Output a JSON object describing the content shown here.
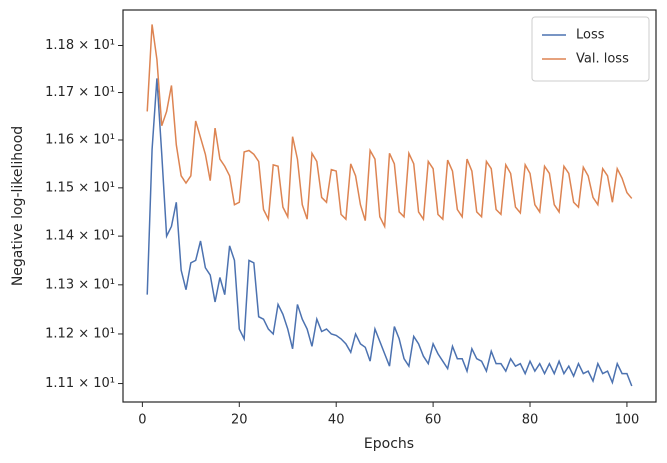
{
  "chart_data": {
    "type": "line",
    "xlabel": "Epochs",
    "ylabel": "Negative log-likelihood",
    "x": [
      1,
      2,
      3,
      4,
      5,
      6,
      7,
      8,
      9,
      10,
      11,
      12,
      13,
      14,
      15,
      16,
      17,
      18,
      19,
      20,
      21,
      22,
      23,
      24,
      25,
      26,
      27,
      28,
      29,
      30,
      31,
      32,
      33,
      34,
      35,
      36,
      37,
      38,
      39,
      40,
      41,
      42,
      43,
      44,
      45,
      46,
      47,
      48,
      49,
      50,
      51,
      52,
      53,
      54,
      55,
      56,
      57,
      58,
      59,
      60,
      61,
      62,
      63,
      64,
      65,
      66,
      67,
      68,
      69,
      70,
      71,
      72,
      73,
      74,
      75,
      76,
      77,
      78,
      79,
      80,
      81,
      82,
      83,
      84,
      85,
      86,
      87,
      88,
      89,
      90,
      91,
      92,
      93,
      94,
      95,
      96,
      97,
      98,
      99,
      100,
      101
    ],
    "series": [
      {
        "name": "Loss",
        "color": "#4c72b0",
        "values": [
          11.28,
          11.58,
          11.73,
          11.57,
          11.4,
          11.42,
          11.47,
          11.33,
          11.29,
          11.345,
          11.35,
          11.39,
          11.335,
          11.32,
          11.265,
          11.315,
          11.28,
          11.38,
          11.35,
          11.21,
          11.19,
          11.35,
          11.345,
          11.235,
          11.23,
          11.21,
          11.2,
          11.26,
          11.24,
          11.21,
          11.17,
          11.26,
          11.23,
          11.21,
          11.175,
          11.23,
          11.205,
          11.21,
          11.2,
          11.197,
          11.19,
          11.18,
          11.163,
          11.2,
          11.18,
          11.173,
          11.145,
          11.21,
          11.185,
          11.16,
          11.135,
          11.215,
          11.19,
          11.15,
          11.135,
          11.195,
          11.18,
          11.155,
          11.14,
          11.18,
          11.16,
          11.145,
          11.13,
          11.175,
          11.15,
          11.15,
          11.125,
          11.17,
          11.15,
          11.145,
          11.125,
          11.165,
          11.14,
          11.14,
          11.125,
          11.15,
          11.135,
          11.14,
          11.12,
          11.145,
          11.125,
          11.14,
          11.12,
          11.14,
          11.12,
          11.145,
          11.12,
          11.135,
          11.115,
          11.14,
          11.12,
          11.125,
          11.105,
          11.14,
          11.12,
          11.125,
          11.102,
          11.14,
          11.12,
          11.12,
          11.095
        ]
      },
      {
        "name": "Val. loss",
        "color": "#dd8452",
        "values": [
          11.66,
          11.845,
          11.77,
          11.63,
          11.66,
          11.715,
          11.59,
          11.525,
          11.51,
          11.525,
          11.64,
          11.605,
          11.57,
          11.515,
          11.625,
          11.56,
          11.545,
          11.525,
          11.465,
          11.47,
          11.575,
          11.578,
          11.57,
          11.555,
          11.455,
          11.435,
          11.548,
          11.545,
          11.46,
          11.44,
          11.607,
          11.56,
          11.465,
          11.435,
          11.572,
          11.555,
          11.48,
          11.47,
          11.538,
          11.535,
          11.445,
          11.435,
          11.55,
          11.525,
          11.465,
          11.432,
          11.578,
          11.56,
          11.44,
          11.42,
          11.572,
          11.55,
          11.45,
          11.44,
          11.572,
          11.55,
          11.45,
          11.435,
          11.555,
          11.54,
          11.445,
          11.435,
          11.558,
          11.535,
          11.455,
          11.44,
          11.56,
          11.535,
          11.45,
          11.44,
          11.555,
          11.54,
          11.455,
          11.445,
          11.548,
          11.53,
          11.46,
          11.448,
          11.548,
          11.53,
          11.465,
          11.45,
          11.545,
          11.53,
          11.465,
          11.45,
          11.545,
          11.53,
          11.47,
          11.46,
          11.543,
          11.525,
          11.48,
          11.465,
          11.54,
          11.525,
          11.47,
          11.54,
          11.52,
          11.49,
          11.478
        ]
      }
    ],
    "xlim": [
      -4,
      106
    ],
    "xticks": [
      0,
      20,
      40,
      60,
      80,
      100
    ],
    "ylim": [
      11.063,
      11.876
    ],
    "log_y": true,
    "yticks": [
      {
        "value": 11.1,
        "label": "1.11 × 10¹"
      },
      {
        "value": 11.2,
        "label": "1.12 × 10¹"
      },
      {
        "value": 11.3,
        "label": "1.13 × 10¹"
      },
      {
        "value": 11.4,
        "label": "1.14 × 10¹"
      },
      {
        "value": 11.5,
        "label": "1.15 × 10¹"
      },
      {
        "value": 11.6,
        "label": "1.16 × 10¹"
      },
      {
        "value": 11.7,
        "label": "1.17 × 10¹"
      },
      {
        "value": 11.8,
        "label": "1.18 × 10¹"
      }
    ],
    "legend": "upper right",
    "grid": false
  }
}
